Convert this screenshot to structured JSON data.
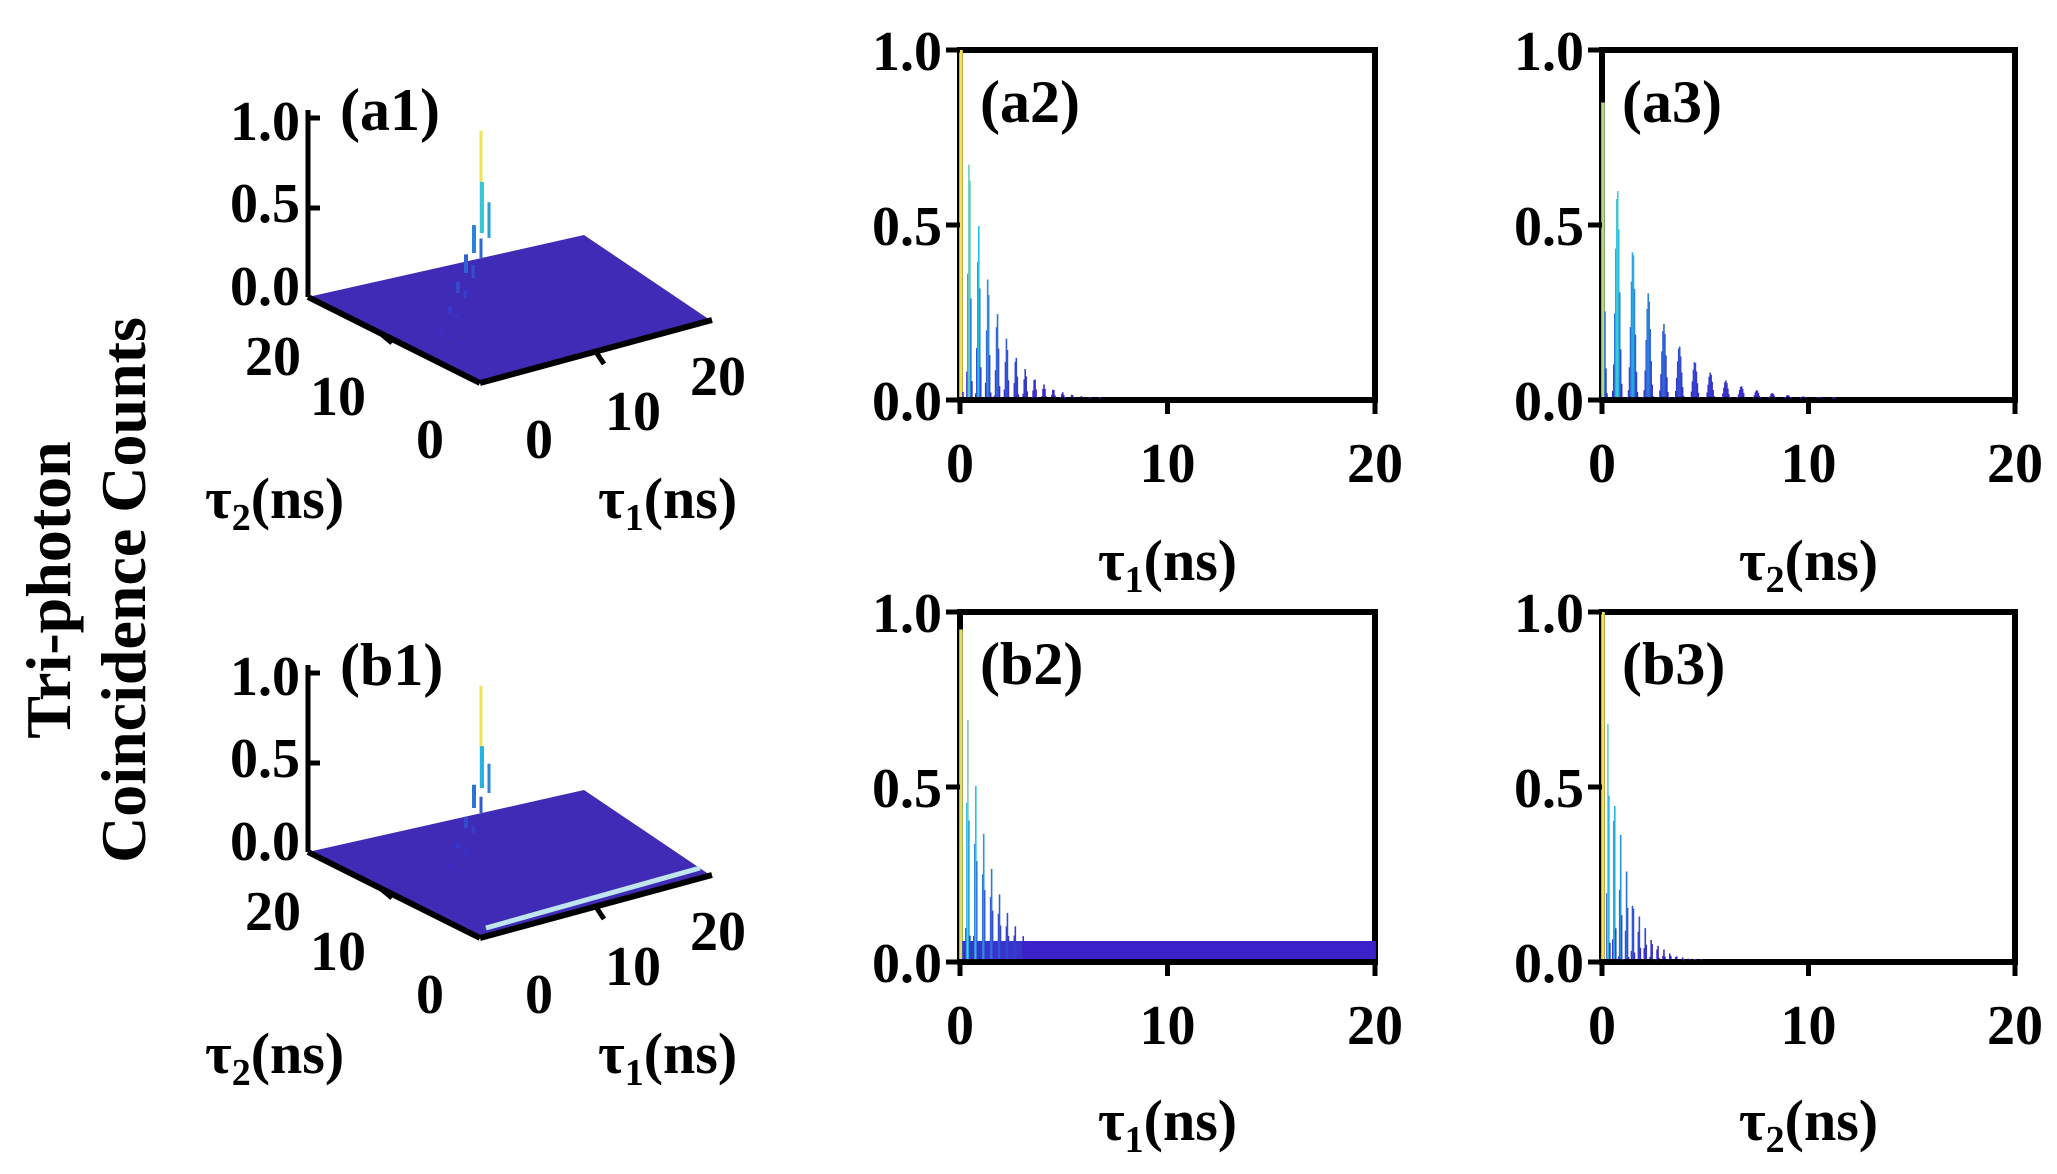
{
  "figure": {
    "ylabel_line1": "Tri-photon",
    "ylabel_line2": "Coincidence Counts"
  },
  "colors": {
    "low": "#3a22c8",
    "mid": "#22c3e6",
    "high": "#f2e15a",
    "floor": "#3f2bb5",
    "axis": "#000000"
  },
  "chart_data": [
    {
      "id": "a1",
      "type": "surface3d",
      "panel_label": "(a1)",
      "zticks": [
        "1.0",
        "0.5",
        "0.0"
      ],
      "zlim": [
        0,
        1
      ],
      "x_axis_ticks": [
        "0",
        "10",
        "20"
      ],
      "y_axis_ticks": [
        "0",
        "10",
        "20"
      ],
      "xlabel_sym": "τ",
      "xlabel_sub": "1",
      "xlabel_unit": "(ns)",
      "ylabel_sym": "τ",
      "ylabel_sub": "2",
      "ylabel_unit": "(ns)",
      "peak": 1.0,
      "ridge_values": [
        0.55,
        0.3,
        0.2,
        0.12,
        0.07,
        0.04
      ]
    },
    {
      "id": "a2",
      "type": "area",
      "panel_label": "(a2)",
      "xlim": [
        0,
        20
      ],
      "ylim": [
        0,
        1
      ],
      "xticks": [
        "0",
        "10",
        "20"
      ],
      "yticks": [
        "0.0",
        "0.5",
        "1.0"
      ],
      "xlabel_sym": "τ",
      "xlabel_sub": "1",
      "xlabel_unit": "(ns)",
      "decay": {
        "amplitude": 1.0,
        "tau_ns": 1.3,
        "period_ns": 0.45,
        "baseline": 0.0
      }
    },
    {
      "id": "a3",
      "type": "area",
      "panel_label": "(a3)",
      "xlim": [
        0,
        20
      ],
      "ylim": [
        0,
        1
      ],
      "xticks": [
        "0",
        "10",
        "20"
      ],
      "yticks": [
        "0.0",
        "0.5",
        "1.0"
      ],
      "xlabel_sym": "τ",
      "xlabel_sub": "2",
      "xlabel_unit": "(ns)",
      "decay": {
        "amplitude": 0.85,
        "tau_ns": 2.2,
        "period_ns": 0.75,
        "baseline": 0.0
      }
    },
    {
      "id": "b1",
      "type": "surface3d",
      "panel_label": "(b1)",
      "zticks": [
        "1.0",
        "0.5",
        "0.0"
      ],
      "zlim": [
        0,
        1
      ],
      "x_axis_ticks": [
        "0",
        "10",
        "20"
      ],
      "y_axis_ticks": [
        "0",
        "10",
        "20"
      ],
      "xlabel_sym": "τ",
      "xlabel_sub": "1",
      "xlabel_unit": "(ns)",
      "ylabel_sym": "τ",
      "ylabel_sub": "2",
      "ylabel_unit": "(ns)",
      "peak": 1.0,
      "ridge_values": [
        0.45,
        0.25,
        0.12,
        0.06,
        0.03
      ]
    },
    {
      "id": "b2",
      "type": "area",
      "panel_label": "(b2)",
      "xlim": [
        0,
        20
      ],
      "ylim": [
        0,
        1
      ],
      "xticks": [
        "0",
        "10",
        "20"
      ],
      "yticks": [
        "0.0",
        "0.5",
        "1.0"
      ],
      "xlabel_sym": "τ",
      "xlabel_sub": "1",
      "xlabel_unit": "(ns)",
      "decay": {
        "amplitude": 0.95,
        "tau_ns": 1.2,
        "period_ns": 0.38,
        "baseline": 0.06
      }
    },
    {
      "id": "b3",
      "type": "area",
      "panel_label": "(b3)",
      "xlim": [
        0,
        20
      ],
      "ylim": [
        0,
        1
      ],
      "xticks": [
        "0",
        "10",
        "20"
      ],
      "yticks": [
        "0.0",
        "0.5",
        "1.0"
      ],
      "xlabel_sym": "τ",
      "xlabel_sub": "2",
      "xlabel_unit": "(ns)",
      "decay": {
        "amplitude": 1.0,
        "tau_ns": 0.9,
        "period_ns": 0.3,
        "baseline": 0.0
      }
    }
  ]
}
